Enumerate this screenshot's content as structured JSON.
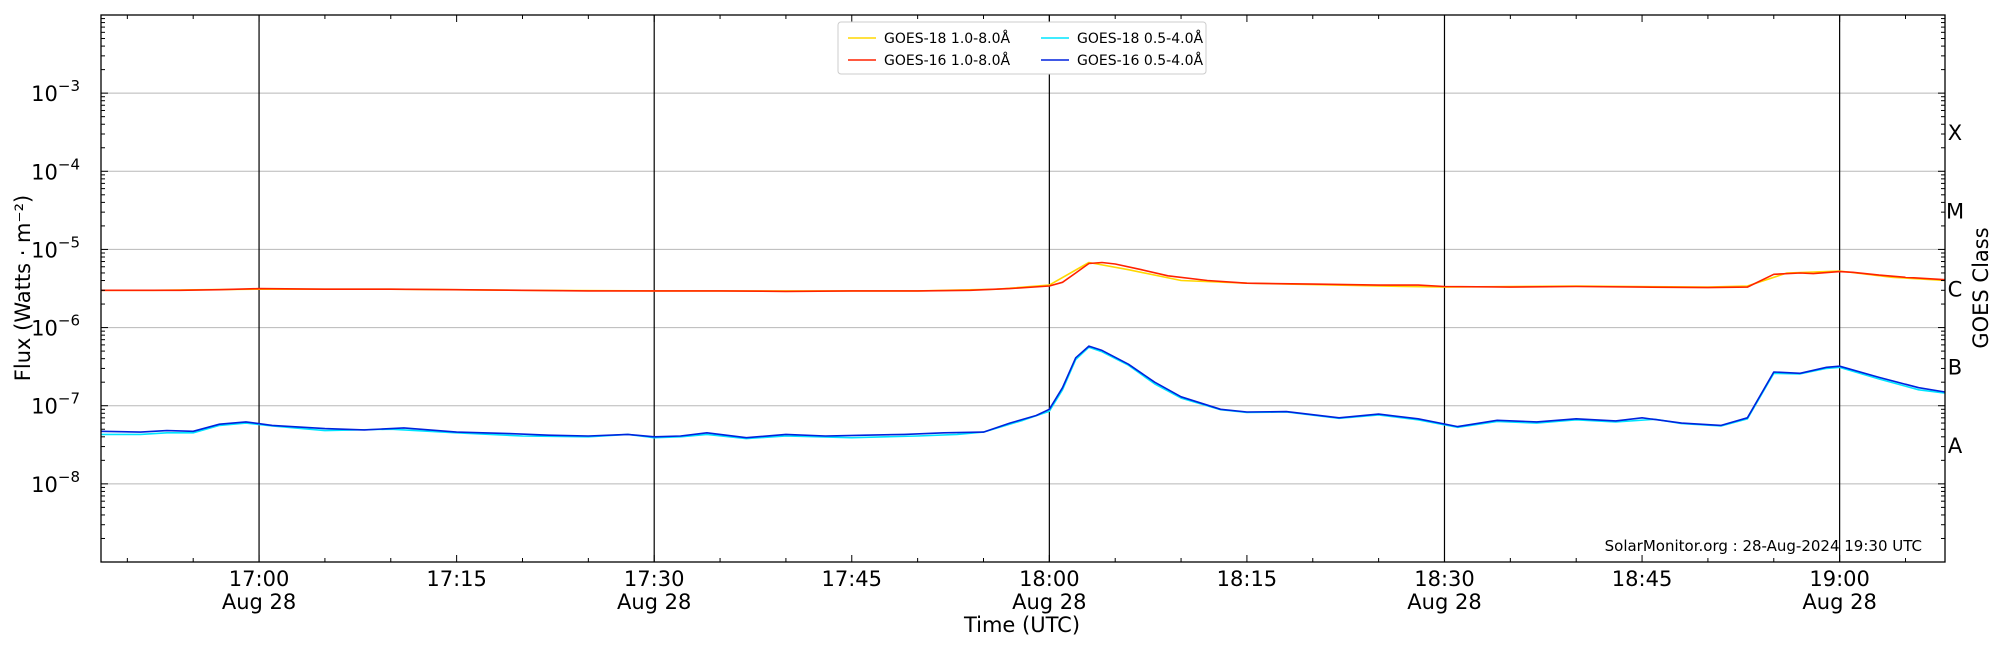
{
  "chart_data": {
    "type": "line",
    "xlabel": "Time (UTC)",
    "ylabel": "Flux (Watts · m⁻²)",
    "right_label": "GOES Class",
    "credit": "SolarMonitor.org : 28-Aug-2024 19:30 UTC",
    "y_scale": "log",
    "ylim": [
      1e-09,
      0.01
    ],
    "xlim": [
      "16:48",
      "19:08"
    ],
    "grid": "horizontal",
    "legend_position": "top-center",
    "y_ticks": [
      {
        "value": 1e-08,
        "base": "10",
        "exp": "−8"
      },
      {
        "value": 1e-07,
        "base": "10",
        "exp": "−7"
      },
      {
        "value": 1e-06,
        "base": "10",
        "exp": "−6"
      },
      {
        "value": 1e-05,
        "base": "10",
        "exp": "−5"
      },
      {
        "value": 0.0001,
        "base": "10",
        "exp": "−4"
      },
      {
        "value": 0.001,
        "base": "10",
        "exp": "−3"
      }
    ],
    "x_ticks": [
      {
        "time": "17:00",
        "label": "17:00",
        "date": "Aug 28",
        "vline": true
      },
      {
        "time": "17:15",
        "label": "17:15",
        "date": "",
        "vline": false
      },
      {
        "time": "17:30",
        "label": "17:30",
        "date": "Aug 28",
        "vline": true
      },
      {
        "time": "17:45",
        "label": "17:45",
        "date": "",
        "vline": false
      },
      {
        "time": "18:00",
        "label": "18:00",
        "date": "Aug 28",
        "vline": true
      },
      {
        "time": "18:15",
        "label": "18:15",
        "date": "",
        "vline": false
      },
      {
        "time": "18:30",
        "label": "18:30",
        "date": "Aug 28",
        "vline": true
      },
      {
        "time": "18:45",
        "label": "18:45",
        "date": "",
        "vline": false
      },
      {
        "time": "19:00",
        "label": "19:00",
        "date": "Aug 28",
        "vline": true
      }
    ],
    "goes_classes": [
      {
        "label": "A",
        "value": 3.16e-08
      },
      {
        "label": "B",
        "value": 3.16e-07
      },
      {
        "label": "C",
        "value": 3.16e-06
      },
      {
        "label": "M",
        "value": 3.16e-05
      },
      {
        "label": "X",
        "value": 0.000316
      }
    ],
    "series": [
      {
        "name": "GOES-18 1.0-8.0Å",
        "color": "#ffd700",
        "points": [
          [
            "16:48",
            3e-06
          ],
          [
            "16:52",
            3e-06
          ],
          [
            "16:56",
            3.05e-06
          ],
          [
            "17:00",
            3.1e-06
          ],
          [
            "17:10",
            3.1e-06
          ],
          [
            "17:20",
            3e-06
          ],
          [
            "17:30",
            2.95e-06
          ],
          [
            "17:40",
            2.95e-06
          ],
          [
            "17:50",
            2.95e-06
          ],
          [
            "17:56",
            3.1e-06
          ],
          [
            "18:00",
            3.5e-06
          ],
          [
            "18:03",
            6.8e-06
          ],
          [
            "18:06",
            5.5e-06
          ],
          [
            "18:10",
            4e-06
          ],
          [
            "18:15",
            3.7e-06
          ],
          [
            "18:25",
            3.4e-06
          ],
          [
            "18:30",
            3.3e-06
          ],
          [
            "18:40",
            3.4e-06
          ],
          [
            "18:50",
            3.3e-06
          ],
          [
            "18:53",
            3.4e-06
          ],
          [
            "18:56",
            5e-06
          ],
          [
            "19:00",
            5.3e-06
          ],
          [
            "19:04",
            4.4e-06
          ],
          [
            "19:08",
            4e-06
          ]
        ]
      },
      {
        "name": "GOES-16 1.0-8.0Å",
        "color": "#ff2200",
        "points": [
          [
            "16:48",
            3e-06
          ],
          [
            "16:51",
            3e-06
          ],
          [
            "16:54",
            3e-06
          ],
          [
            "16:57",
            3.05e-06
          ],
          [
            "17:00",
            3.15e-06
          ],
          [
            "17:05",
            3.1e-06
          ],
          [
            "17:10",
            3.1e-06
          ],
          [
            "17:15",
            3.05e-06
          ],
          [
            "17:20",
            3e-06
          ],
          [
            "17:25",
            2.95e-06
          ],
          [
            "17:28",
            2.95e-06
          ],
          [
            "17:30",
            2.95e-06
          ],
          [
            "17:35",
            2.95e-06
          ],
          [
            "17:40",
            2.9e-06
          ],
          [
            "17:45",
            2.95e-06
          ],
          [
            "17:50",
            2.95e-06
          ],
          [
            "17:54",
            3e-06
          ],
          [
            "17:57",
            3.15e-06
          ],
          [
            "18:00",
            3.4e-06
          ],
          [
            "18:01",
            3.8e-06
          ],
          [
            "18:02",
            5e-06
          ],
          [
            "18:03",
            6.6e-06
          ],
          [
            "18:04",
            6.8e-06
          ],
          [
            "18:05",
            6.5e-06
          ],
          [
            "18:07",
            5.5e-06
          ],
          [
            "18:09",
            4.6e-06
          ],
          [
            "18:12",
            4e-06
          ],
          [
            "18:15",
            3.7e-06
          ],
          [
            "18:20",
            3.6e-06
          ],
          [
            "18:25",
            3.5e-06
          ],
          [
            "18:28",
            3.5e-06
          ],
          [
            "18:30",
            3.35e-06
          ],
          [
            "18:35",
            3.3e-06
          ],
          [
            "18:40",
            3.35e-06
          ],
          [
            "18:45",
            3.3e-06
          ],
          [
            "18:50",
            3.25e-06
          ],
          [
            "18:53",
            3.3e-06
          ],
          [
            "18:55",
            4.8e-06
          ],
          [
            "18:57",
            5e-06
          ],
          [
            "18:58",
            4.9e-06
          ],
          [
            "19:00",
            5.2e-06
          ],
          [
            "19:01",
            5.1e-06
          ],
          [
            "19:03",
            4.7e-06
          ],
          [
            "19:05",
            4.4e-06
          ],
          [
            "19:08",
            4.1e-06
          ]
        ]
      },
      {
        "name": "GOES-18 0.5-4.0Å",
        "color": "#00e5ff",
        "points": [
          [
            "16:48",
            4.3e-08
          ],
          [
            "16:51",
            4.3e-08
          ],
          [
            "16:53",
            4.5e-08
          ],
          [
            "16:55",
            4.5e-08
          ],
          [
            "16:57",
            5.6e-08
          ],
          [
            "16:59",
            6e-08
          ],
          [
            "17:01",
            5.5e-08
          ],
          [
            "17:05",
            4.8e-08
          ],
          [
            "17:10",
            5e-08
          ],
          [
            "17:15",
            4.5e-08
          ],
          [
            "17:20",
            4.1e-08
          ],
          [
            "17:25",
            4e-08
          ],
          [
            "17:28",
            4.3e-08
          ],
          [
            "17:30",
            3.9e-08
          ],
          [
            "17:32",
            4e-08
          ],
          [
            "17:34",
            4.3e-08
          ],
          [
            "17:37",
            3.8e-08
          ],
          [
            "17:40",
            4.1e-08
          ],
          [
            "17:45",
            3.9e-08
          ],
          [
            "17:50",
            4.1e-08
          ],
          [
            "17:53",
            4.3e-08
          ],
          [
            "17:55",
            4.6e-08
          ],
          [
            "17:58",
            6.5e-08
          ],
          [
            "18:00",
            8.5e-08
          ],
          [
            "18:01",
            1.6e-07
          ],
          [
            "18:02",
            3.9e-07
          ],
          [
            "18:03",
            5.6e-07
          ],
          [
            "18:04",
            4.9e-07
          ],
          [
            "18:06",
            3.3e-07
          ],
          [
            "18:08",
            1.9e-07
          ],
          [
            "18:10",
            1.25e-07
          ],
          [
            "18:13",
            8.9e-08
          ],
          [
            "18:15",
            8.2e-08
          ],
          [
            "18:18",
            8.3e-08
          ],
          [
            "18:22",
            6.9e-08
          ],
          [
            "18:25",
            7.6e-08
          ],
          [
            "18:28",
            6.6e-08
          ],
          [
            "18:31",
            5.3e-08
          ],
          [
            "18:34",
            6.3e-08
          ],
          [
            "18:37",
            6e-08
          ],
          [
            "18:40",
            6.6e-08
          ],
          [
            "18:43",
            6.2e-08
          ],
          [
            "18:46",
            6.7e-08
          ],
          [
            "18:48",
            5.9e-08
          ],
          [
            "18:51",
            5.5e-08
          ],
          [
            "18:53",
            6.8e-08
          ],
          [
            "18:55",
            2.6e-07
          ],
          [
            "18:57",
            2.55e-07
          ],
          [
            "18:59",
            3e-07
          ],
          [
            "19:00",
            3.1e-07
          ],
          [
            "19:03",
            2.2e-07
          ],
          [
            "19:06",
            1.6e-07
          ],
          [
            "19:08",
            1.45e-07
          ]
        ]
      },
      {
        "name": "GOES-16 0.5-4.0Å",
        "color": "#0022dd",
        "points": [
          [
            "16:48",
            4.7e-08
          ],
          [
            "16:51",
            4.6e-08
          ],
          [
            "16:53",
            4.8e-08
          ],
          [
            "16:55",
            4.7e-08
          ],
          [
            "16:57",
            5.8e-08
          ],
          [
            "16:59",
            6.2e-08
          ],
          [
            "17:01",
            5.6e-08
          ],
          [
            "17:05",
            5.1e-08
          ],
          [
            "17:08",
            4.9e-08
          ],
          [
            "17:11",
            5.2e-08
          ],
          [
            "17:15",
            4.6e-08
          ],
          [
            "17:19",
            4.4e-08
          ],
          [
            "17:22",
            4.2e-08
          ],
          [
            "17:25",
            4.1e-08
          ],
          [
            "17:28",
            4.3e-08
          ],
          [
            "17:30",
            4e-08
          ],
          [
            "17:32",
            4.1e-08
          ],
          [
            "17:34",
            4.5e-08
          ],
          [
            "17:37",
            3.9e-08
          ],
          [
            "17:40",
            4.3e-08
          ],
          [
            "17:43",
            4.1e-08
          ],
          [
            "17:46",
            4.2e-08
          ],
          [
            "17:49",
            4.3e-08
          ],
          [
            "17:52",
            4.5e-08
          ],
          [
            "17:55",
            4.6e-08
          ],
          [
            "17:57",
            6e-08
          ],
          [
            "17:59",
            7.5e-08
          ],
          [
            "18:00",
            9e-08
          ],
          [
            "18:01",
            1.7e-07
          ],
          [
            "18:02",
            4.1e-07
          ],
          [
            "18:03",
            5.8e-07
          ],
          [
            "18:04",
            5.1e-07
          ],
          [
            "18:06",
            3.4e-07
          ],
          [
            "18:08",
            2e-07
          ],
          [
            "18:10",
            1.3e-07
          ],
          [
            "18:13",
            9e-08
          ],
          [
            "18:15",
            8.3e-08
          ],
          [
            "18:18",
            8.4e-08
          ],
          [
            "18:22",
            7e-08
          ],
          [
            "18:25",
            7.8e-08
          ],
          [
            "18:28",
            6.8e-08
          ],
          [
            "18:31",
            5.4e-08
          ],
          [
            "18:34",
            6.5e-08
          ],
          [
            "18:37",
            6.2e-08
          ],
          [
            "18:40",
            6.8e-08
          ],
          [
            "18:43",
            6.4e-08
          ],
          [
            "18:45",
            7e-08
          ],
          [
            "18:48",
            6e-08
          ],
          [
            "18:51",
            5.6e-08
          ],
          [
            "18:53",
            7e-08
          ],
          [
            "18:55",
            2.7e-07
          ],
          [
            "18:57",
            2.6e-07
          ],
          [
            "18:59",
            3.1e-07
          ],
          [
            "19:00",
            3.2e-07
          ],
          [
            "19:03",
            2.3e-07
          ],
          [
            "19:06",
            1.7e-07
          ],
          [
            "19:08",
            1.5e-07
          ]
        ]
      }
    ]
  }
}
